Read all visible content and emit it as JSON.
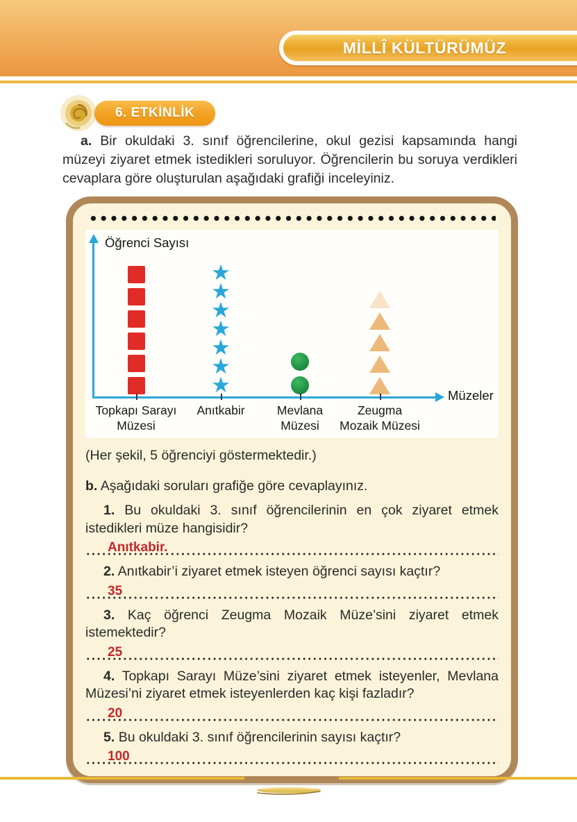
{
  "header": {
    "title": "MİLLÎ KÜLTÜRÜMÜZ"
  },
  "activity": {
    "badge": "6. ETKİNLİK"
  },
  "intro": {
    "label": "a.",
    "text": "Bir okuldaki 3. sınıf öğrencilerine, okul gezisi kapsamında hangi müzeyi ziyaret etmek istedikleri soruluyor. Öğrencilerin bu soruya verdikleri cevaplara göre oluşturulan aşağıdaki grafiği inceleyiniz."
  },
  "chart_data": {
    "type": "pictograph",
    "title": "",
    "ylabel": "Öğrenci Sayısı",
    "xlabel": "Müzeler",
    "symbol_value": 5,
    "legend": "(Her şekil, 5 öğrenciyi göstermektedir.)",
    "categories": [
      "Topkapı Sarayı Müzesi",
      "Anıtkabir",
      "Mevlana Müzesi",
      "Zeugma Mozaik Müzesi"
    ],
    "categories_lines": [
      [
        "Topkapı Sarayı",
        "Müzesi"
      ],
      [
        "Anıtkabir"
      ],
      [
        "Mevlana",
        "Müzesi"
      ],
      [
        "Zeugma",
        "Mozaik Müzesi"
      ]
    ],
    "symbols": [
      "red-square",
      "blue-star",
      "green-circle",
      "orange-triangle"
    ],
    "symbol_counts": [
      6,
      7,
      2,
      5
    ],
    "values": [
      30,
      35,
      10,
      25
    ]
  },
  "legend_note": "(Her şekil, 5 öğrenciyi göstermektedir.)",
  "part_b": {
    "label": "b.",
    "text": "Aşağıdaki soruları grafiğe göre cevaplayınız."
  },
  "questions": [
    {
      "number": "1.",
      "text": "Bu okuldaki 3. sınıf öğrencilerinin en çok ziyaret etmek istedikleri müze hangisidir?",
      "answer": "Anıtkabir."
    },
    {
      "number": "2.",
      "text": "Anıtkabir’i ziyaret etmek isteyen öğrenci sayısı kaçtır?",
      "answer": "35"
    },
    {
      "number": "3.",
      "text": "Kaç öğrenci Zeugma Mozaik Müze’sini ziyaret etmek istemektedir?",
      "answer": "25"
    },
    {
      "number": "4.",
      "text": "Topkapı Sarayı Müze’sini ziyaret etmek isteyenler, Mevlana Müzesi’ni ziyaret etmek isteyenlerden kaç kişi fazladır?",
      "answer": "20"
    },
    {
      "number": "5.",
      "text": "Bu okuldaki 3. sınıf öğrencilerinin sayısı kaçtır?",
      "answer": "100"
    }
  ],
  "colors": {
    "header_orange": "#ee9f48",
    "gold_rule": "#e9b83e",
    "badge_orange": "#f2a122",
    "panel_border": "#b08758",
    "panel_background": "#fbf4da",
    "axis_blue": "#2aa7d9",
    "red_square": "#e12b27",
    "blue_star": "#2aa7d9",
    "green_circle": "#1e8c3f",
    "orange_triangle": "#e9a75b",
    "answer_red": "#c5272d"
  }
}
